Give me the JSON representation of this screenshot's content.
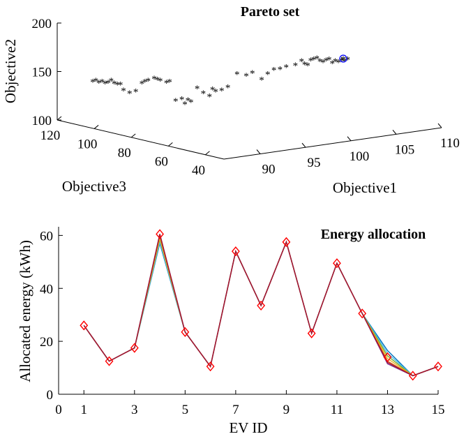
{
  "chart_data": [
    {
      "type": "scatter",
      "title": "Pareto set",
      "axes": {
        "x": {
          "label": "Objective1",
          "ticks": [
            "90",
            "95",
            "100",
            "105",
            "110"
          ],
          "range": [
            86,
            110
          ]
        },
        "y": {
          "label": "Objective3",
          "ticks": [
            "40",
            "60",
            "80",
            "100",
            "120"
          ],
          "range": [
            30,
            120
          ]
        },
        "z": {
          "label": "Objective2",
          "ticks": [
            "100",
            "150",
            "200"
          ],
          "range": [
            100,
            200
          ]
        }
      },
      "marker": "asterisk",
      "marker_color": "#ff0000",
      "highlight": {
        "marker": "circle",
        "color": "#0000ff"
      },
      "points_obj3_obj2": [
        [
          100,
          140
        ],
        [
          99,
          141
        ],
        [
          98,
          139
        ],
        [
          97,
          140
        ],
        [
          96,
          138
        ],
        [
          95,
          139
        ],
        [
          94,
          141
        ],
        [
          93,
          138
        ],
        [
          92,
          137
        ],
        [
          91,
          137
        ],
        [
          90,
          131
        ],
        [
          88,
          128
        ],
        [
          86,
          130
        ],
        [
          84,
          138
        ],
        [
          83,
          140
        ],
        [
          82,
          141
        ],
        [
          80,
          143
        ],
        [
          79,
          142
        ],
        [
          78,
          141
        ],
        [
          76,
          139
        ],
        [
          75,
          140
        ],
        [
          73,
          120
        ],
        [
          71,
          122
        ],
        [
          70,
          117
        ],
        [
          69,
          121
        ],
        [
          68,
          119
        ],
        [
          66,
          133
        ],
        [
          64,
          128
        ],
        [
          62,
          125
        ],
        [
          61,
          132
        ],
        [
          60,
          130
        ],
        [
          58,
          131
        ],
        [
          56,
          134
        ],
        [
          53,
          148
        ],
        [
          50,
          146
        ],
        [
          48,
          149
        ],
        [
          45,
          142
        ],
        [
          43,
          148
        ],
        [
          41,
          152
        ],
        [
          39,
          153
        ],
        [
          37,
          155
        ],
        [
          34,
          157
        ],
        [
          32,
          161
        ],
        [
          31,
          158
        ],
        [
          30,
          157
        ],
        [
          29,
          162
        ],
        [
          28,
          163
        ],
        [
          27,
          164
        ],
        [
          26,
          161
        ],
        [
          25,
          160
        ],
        [
          24,
          162
        ],
        [
          23,
          163
        ],
        [
          22,
          159
        ],
        [
          21,
          161
        ],
        [
          20,
          160
        ],
        [
          19,
          162
        ],
        [
          18,
          161
        ],
        [
          17,
          163
        ]
      ]
    },
    {
      "type": "line",
      "title": "Energy allocation",
      "xlabel": "EV ID",
      "ylabel": "Allocated energy (kWh)",
      "xlim": [
        0,
        15
      ],
      "ylim": [
        0,
        63
      ],
      "xticks": [
        0,
        1,
        3,
        5,
        7,
        9,
        11,
        13,
        15
      ],
      "yticks": [
        0,
        20,
        40,
        60
      ],
      "x": [
        1,
        2,
        3,
        4,
        5,
        6,
        7,
        8,
        9,
        10,
        11,
        12,
        13,
        14,
        15
      ],
      "series": [
        {
          "color": "#0072bd",
          "values": [
            26,
            12.5,
            17.5,
            57,
            23.5,
            10.5,
            54,
            33.5,
            57.5,
            23,
            49.5,
            30.5,
            16.5,
            7,
            10.5
          ]
        },
        {
          "color": "#4dbeee",
          "values": [
            26,
            12.5,
            17.5,
            57.5,
            23.5,
            10.5,
            54,
            33.5,
            57.5,
            23,
            49.5,
            30.5,
            15.5,
            7,
            10.5
          ]
        },
        {
          "color": "#77ac30",
          "values": [
            26,
            12.5,
            17.5,
            58.5,
            23.5,
            10.5,
            54,
            33.5,
            57.5,
            23,
            49.5,
            30.5,
            14.5,
            7,
            10.5
          ]
        },
        {
          "color": "#edb120",
          "values": [
            26,
            12.5,
            17.5,
            59,
            23.5,
            10.5,
            54,
            33.5,
            57.5,
            23,
            49.5,
            30.5,
            13.5,
            7,
            10.5
          ]
        },
        {
          "color": "#d95319",
          "values": [
            26,
            12.5,
            17.5,
            60,
            23.5,
            10.5,
            54,
            33.5,
            57.5,
            23,
            49.5,
            30.5,
            12.5,
            7,
            10.5
          ]
        },
        {
          "color": "#7e2f8e",
          "values": [
            26,
            12.5,
            17.5,
            60.5,
            23.5,
            10.5,
            54,
            33.5,
            57.5,
            23,
            49.5,
            30.5,
            11.5,
            7,
            10.5
          ]
        },
        {
          "color": "#a2142f",
          "values": [
            26,
            12.5,
            17.5,
            60.5,
            23.5,
            10.5,
            54,
            33.5,
            57.5,
            23,
            49.5,
            30.5,
            12,
            7,
            10.5
          ]
        }
      ],
      "highlight_series": {
        "marker": "diamond",
        "color": "#ff0000",
        "values": [
          26,
          12.5,
          17.5,
          60.5,
          23.5,
          10.5,
          54,
          33.5,
          57.5,
          23,
          49.5,
          30.5,
          14,
          7,
          10.5
        ]
      }
    }
  ]
}
